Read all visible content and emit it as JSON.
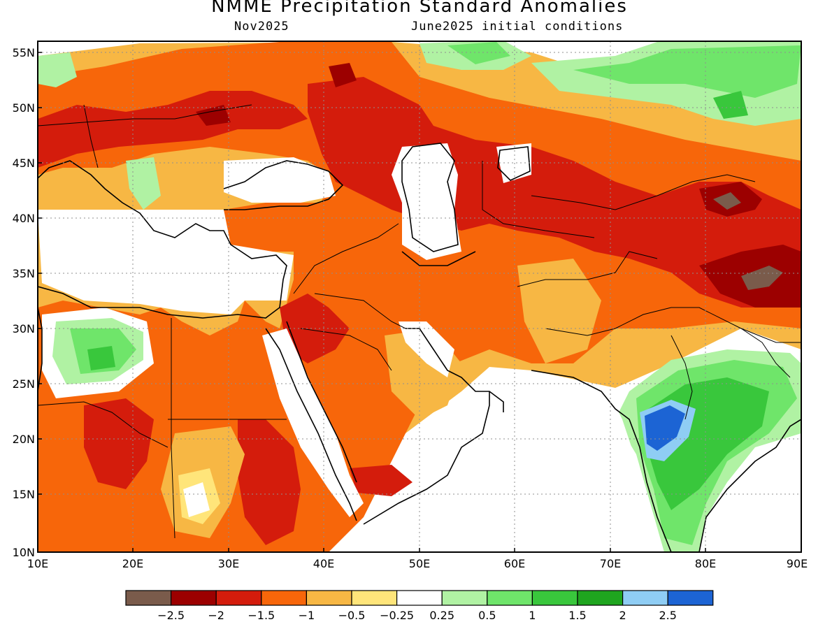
{
  "title": "NMME Precipitation Standard Anomalies",
  "subtitle_left": "Nov2025",
  "subtitle_right": "June2025 initial conditions",
  "lat_labels": [
    "55N",
    "50N",
    "45N",
    "40N",
    "35N",
    "30N",
    "25N",
    "20N",
    "15N",
    "10N"
  ],
  "lon_labels": [
    "10E",
    "20E",
    "30E",
    "40E",
    "50E",
    "60E",
    "70E",
    "80E",
    "90E"
  ],
  "colorbar": {
    "colors": [
      "#7a5b4b",
      "#9c0000",
      "#d41c0c",
      "#f7660a",
      "#f7b744",
      "#ffe57a",
      "#ffffff",
      "#b0f2a3",
      "#6fe56a",
      "#39c73c",
      "#1fa51f",
      "#8fcdf4",
      "#1c64d4"
    ],
    "labels": [
      "−2.5",
      "−2",
      "−1.5",
      "−1",
      "−0.5",
      "−0.25",
      "0.25",
      "0.5",
      "1",
      "1.5",
      "2",
      "2.5"
    ]
  }
}
